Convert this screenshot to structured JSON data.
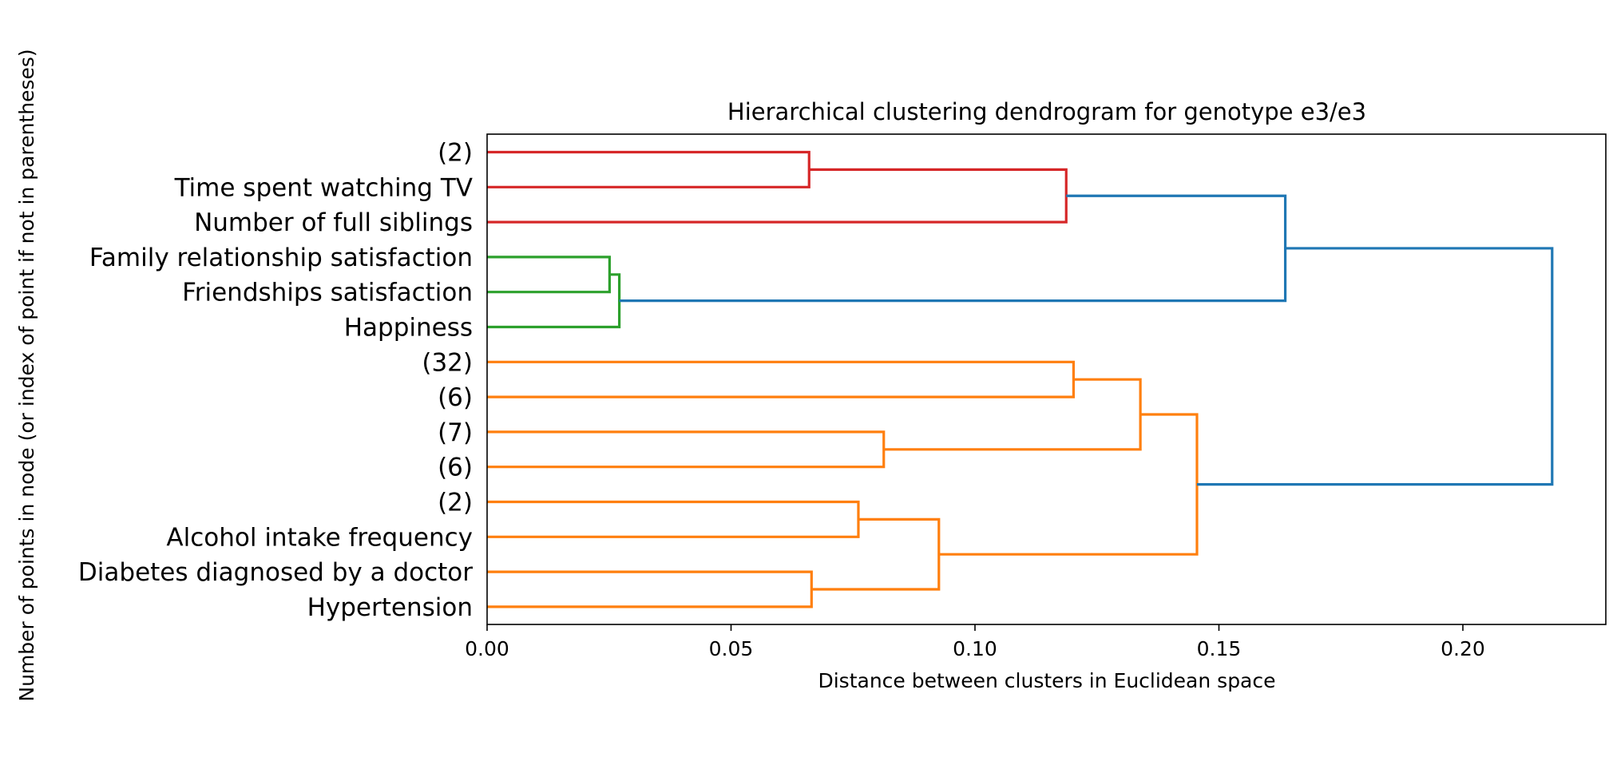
{
  "chart_data": {
    "type": "dendrogram",
    "orientation": "horizontal",
    "title": "Hierarchical clustering dendrogram for genotype e3/e3",
    "xlabel": "Distance between clusters in Euclidean space",
    "ylabel": "Number of points in node (or index of point if not in parentheses)",
    "xlim": [
      0,
      0.2293
    ],
    "xticks": [
      {
        "value": 0.0,
        "label": "0.00"
      },
      {
        "value": 0.05,
        "label": "0.05"
      },
      {
        "value": 0.1,
        "label": "0.10"
      },
      {
        "value": 0.15,
        "label": "0.15"
      },
      {
        "value": 0.2,
        "label": "0.20"
      }
    ],
    "leaves": [
      "(2)",
      "Time spent watching TV",
      "Number of full siblings",
      "Family relationship satisfaction",
      "Friendships satisfaction",
      "Happiness",
      "(32)",
      "(6)",
      "(7)",
      "(6)",
      "(2)",
      "Alcohol intake frequency",
      "Diabetes diagnosed by a doctor",
      "Hypertension"
    ],
    "colors": {
      "red": "#d62728",
      "green": "#2ca02c",
      "orange": "#ff7f0e",
      "blue": "#1f77b4"
    },
    "merges": [
      {
        "id": "m1",
        "left": "leaf:0",
        "right": "leaf:1",
        "distance": 0.066,
        "color": "red"
      },
      {
        "id": "m2",
        "left": "m1",
        "right": "leaf:2",
        "distance": 0.1187,
        "color": "red"
      },
      {
        "id": "m3",
        "left": "leaf:3",
        "right": "leaf:4",
        "distance": 0.0251,
        "color": "green"
      },
      {
        "id": "m4",
        "left": "m3",
        "right": "leaf:5",
        "distance": 0.0271,
        "color": "green"
      },
      {
        "id": "m5",
        "left": "m2",
        "right": "m4",
        "distance": 0.1636,
        "color": "blue"
      },
      {
        "id": "m6",
        "left": "leaf:6",
        "right": "leaf:7",
        "distance": 0.1202,
        "color": "orange"
      },
      {
        "id": "m7",
        "left": "leaf:8",
        "right": "leaf:9",
        "distance": 0.0813,
        "color": "orange"
      },
      {
        "id": "m8",
        "left": "m6",
        "right": "m7",
        "distance": 0.1339,
        "color": "orange"
      },
      {
        "id": "m9",
        "left": "leaf:10",
        "right": "leaf:11",
        "distance": 0.0761,
        "color": "orange"
      },
      {
        "id": "m10",
        "left": "leaf:12",
        "right": "leaf:13",
        "distance": 0.0665,
        "color": "orange"
      },
      {
        "id": "m11",
        "left": "m9",
        "right": "m10",
        "distance": 0.0926,
        "color": "orange"
      },
      {
        "id": "m12",
        "left": "m8",
        "right": "m11",
        "distance": 0.1455,
        "color": "orange"
      },
      {
        "id": "m13",
        "left": "m5",
        "right": "m12",
        "distance": 0.2183,
        "color": "blue"
      }
    ]
  }
}
